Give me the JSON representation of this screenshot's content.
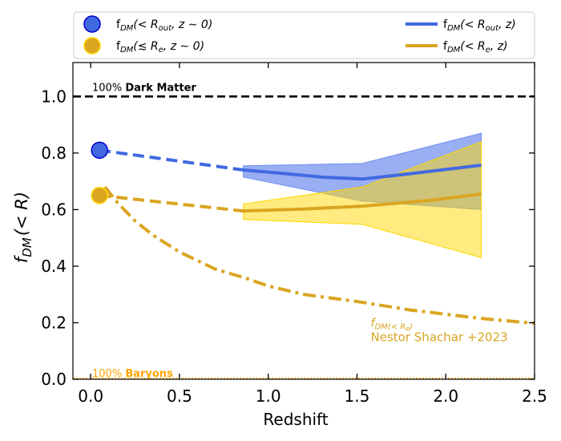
{
  "chart_data": {
    "type": "line",
    "xlabel": "Redshift",
    "ylabel_main": "f",
    "ylabel_sub": "DM",
    "ylabel_tail": "(< R)",
    "xlim": [
      -0.1,
      2.5
    ],
    "ylim": [
      0.0,
      1.12
    ],
    "xticks": [
      0.0,
      0.5,
      1.0,
      1.5,
      2.0,
      2.5
    ],
    "xtick_labels": [
      "0.0",
      "0.5",
      "1.0",
      "1.5",
      "2.0",
      "2.5"
    ],
    "yticks": [
      0.0,
      0.2,
      0.4,
      0.6,
      0.8,
      1.0
    ],
    "ytick_labels": [
      "0.0",
      "0.2",
      "0.4",
      "0.6",
      "0.8",
      "1.0"
    ],
    "colors": {
      "blue": "#4169e1",
      "gold": "#daa520",
      "blue_band": "#6f8cee",
      "gold_band": "#ffd700",
      "baryon_text": "#ffa500",
      "black": "#000000"
    },
    "reference_lines": [
      {
        "name": "dark-matter-line",
        "y": 1.0,
        "label_prefix": "100% ",
        "label_bold": "Dark Matter"
      },
      {
        "name": "baryon-line",
        "y": 0.0,
        "label_prefix": "100% ",
        "label_bold": "Baryons"
      }
    ],
    "points": [
      {
        "name": "rout-point",
        "x": 0.05,
        "y": 0.81,
        "color": "#4169e1",
        "edge": "#0000cd"
      },
      {
        "name": "re-point",
        "x": 0.05,
        "y": 0.65,
        "color": "#daa520",
        "edge": "#ffd700"
      }
    ],
    "series": [
      {
        "name": "rout-dashed",
        "style": "dashed",
        "color": "#4169e1",
        "x": [
          0.05,
          0.86
        ],
        "y": [
          0.81,
          0.74
        ]
      },
      {
        "name": "rout-solid",
        "style": "solid",
        "color": "#4169e1",
        "x": [
          0.86,
          1.1,
          1.3,
          1.53,
          1.8,
          2.0,
          2.2
        ],
        "y": [
          0.74,
          0.727,
          0.715,
          0.708,
          0.727,
          0.742,
          0.757
        ]
      },
      {
        "name": "re-dashed",
        "style": "dashed",
        "color": "#daa520",
        "x": [
          0.05,
          0.86
        ],
        "y": [
          0.65,
          0.595
        ]
      },
      {
        "name": "re-solid",
        "style": "solid",
        "color": "#daa520",
        "x": [
          0.86,
          1.2,
          1.53,
          1.9,
          2.2
        ],
        "y": [
          0.595,
          0.602,
          0.612,
          0.632,
          0.655
        ]
      },
      {
        "name": "shachar-dashdot",
        "style": "dashdot",
        "color": "#daa520",
        "x": [
          0.08,
          0.15,
          0.25,
          0.35,
          0.5,
          0.7,
          0.86,
          1.0,
          1.2,
          1.5,
          1.8,
          2.0,
          2.2,
          2.5
        ],
        "y": [
          0.68,
          0.625,
          0.56,
          0.51,
          0.45,
          0.39,
          0.36,
          0.33,
          0.3,
          0.275,
          0.245,
          0.23,
          0.215,
          0.198
        ]
      }
    ],
    "bands": [
      {
        "name": "rout-band",
        "color": "#6f8cee",
        "opacity": 0.7,
        "x": [
          0.86,
          1.53,
          2.2
        ],
        "upper": [
          0.755,
          0.763,
          0.87
        ],
        "lower": [
          0.715,
          0.63,
          0.6
        ]
      },
      {
        "name": "re-band",
        "color": "#ffd700",
        "opacity": 0.5,
        "x": [
          0.86,
          1.53,
          2.2
        ],
        "upper": [
          0.62,
          0.68,
          0.84
        ],
        "lower": [
          0.565,
          0.548,
          0.43
        ]
      }
    ],
    "annotation": {
      "line1_main": "f",
      "line1_sub": "DM(< R",
      "line1_subsub": "e",
      "line1_close": ")",
      "line2": "Nestor Shachar +2023",
      "x": 1.55,
      "y": 0.135
    },
    "legend": {
      "placement": "top",
      "entries": [
        {
          "name": "legend-rout-point",
          "kind": "marker",
          "color": "#4169e1",
          "edge": "#0000cd",
          "text_f": "f",
          "text_sub": "DM",
          "text_rest": "(< R",
          "text_sub2": "out",
          "text_tail": ", z ∼ 0)"
        },
        {
          "name": "legend-rout-line",
          "kind": "line",
          "color": "#4169e1",
          "text_f": "f",
          "text_sub": "DM",
          "text_rest": "(< R",
          "text_sub2": "out",
          "text_tail": ", z)"
        },
        {
          "name": "legend-re-point",
          "kind": "marker",
          "color": "#daa520",
          "edge": "#ffd700",
          "text_f": "f",
          "text_sub": "DM",
          "text_rest": "(≲ R",
          "text_sub2": "e",
          "text_tail": ", z ∼ 0)"
        },
        {
          "name": "legend-re-line",
          "kind": "line",
          "color": "#daa520",
          "text_f": "f",
          "text_sub": "DM",
          "text_rest": "(< R",
          "text_sub2": "e",
          "text_tail": ", z)"
        }
      ]
    }
  }
}
